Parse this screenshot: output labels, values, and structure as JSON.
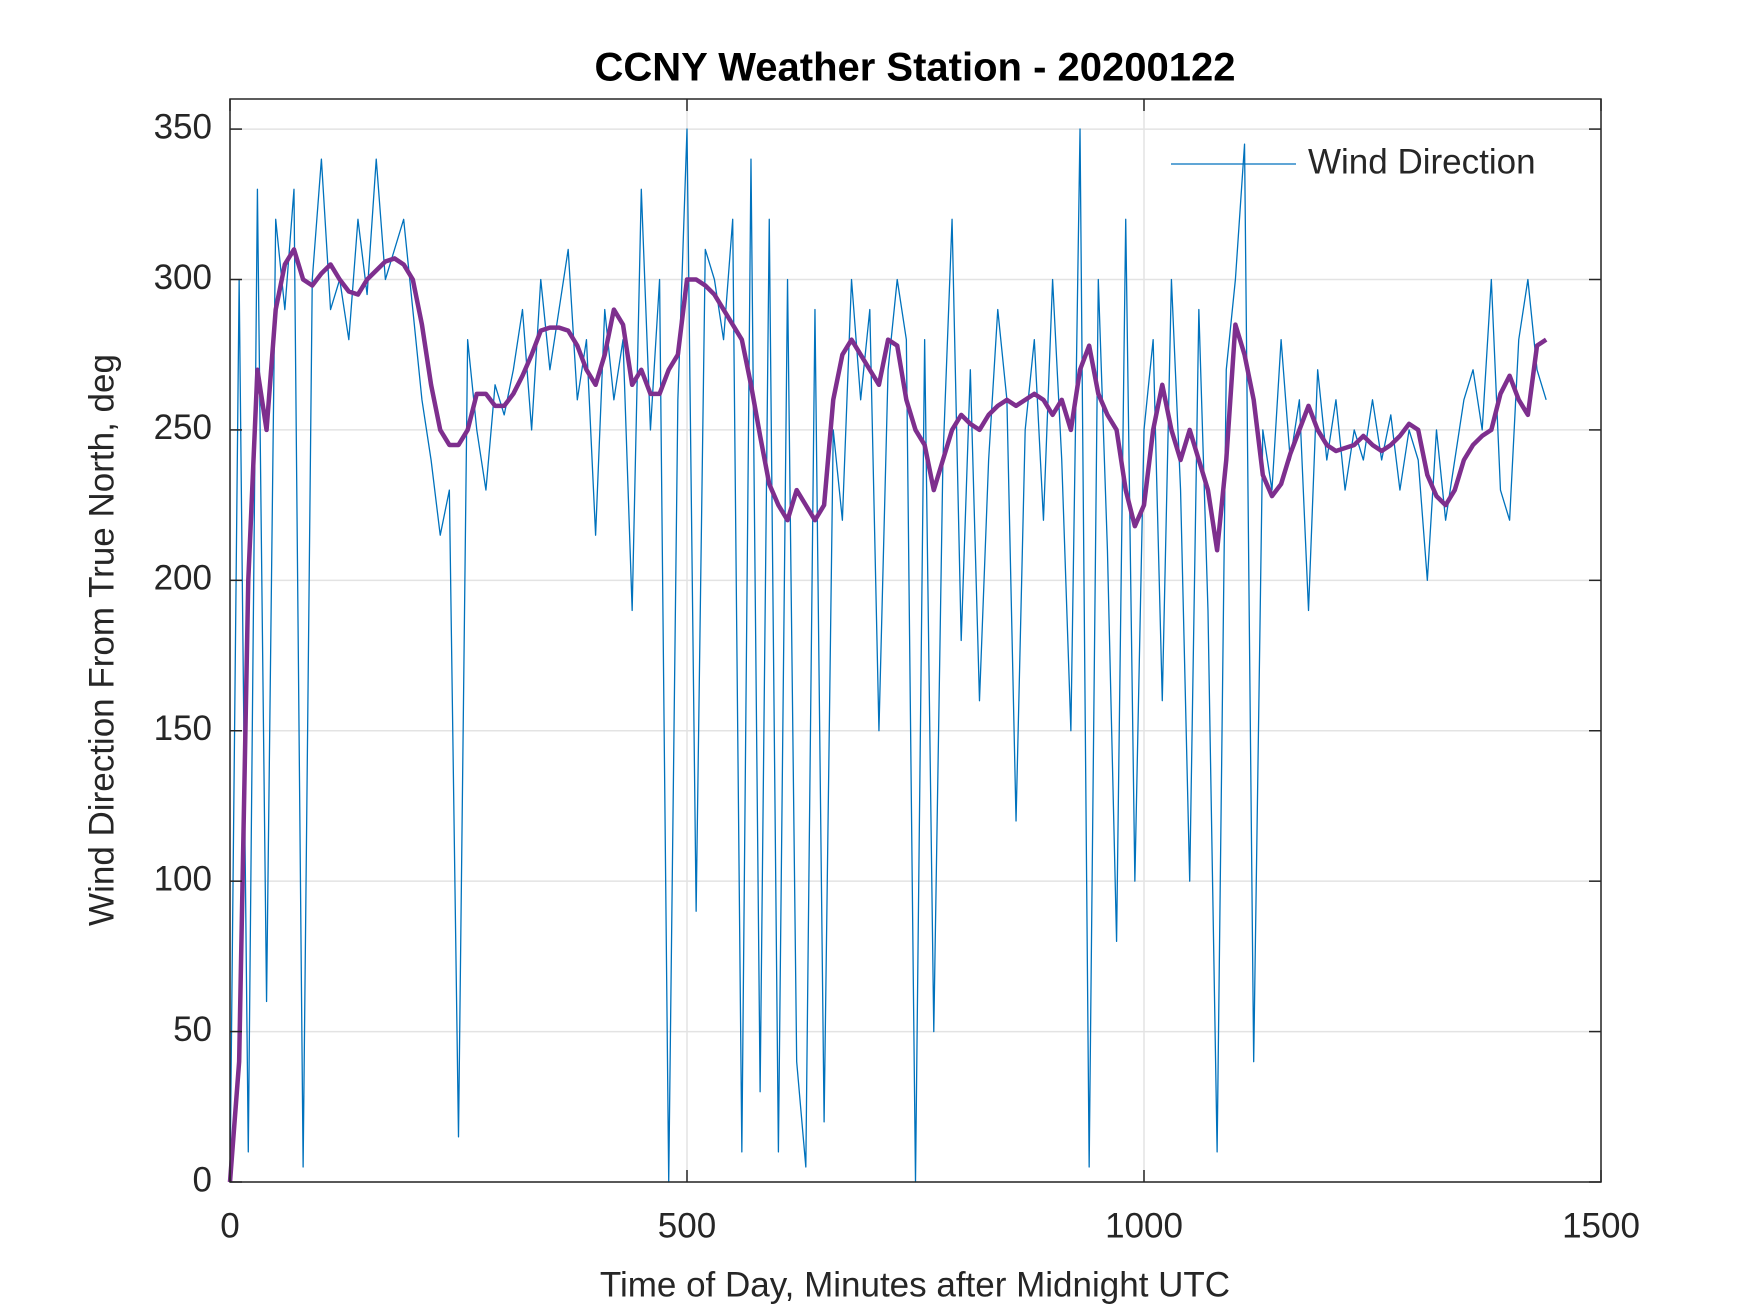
{
  "chart_data": {
    "type": "line",
    "title": "CCNY Weather Station - 20200122",
    "xlabel": "Time of Day, Minutes after Midnight UTC",
    "ylabel": "Wind Direction From True North, deg",
    "x": [
      0,
      10,
      20,
      30,
      40,
      50,
      60,
      70,
      80,
      90,
      100,
      110,
      120,
      130,
      140,
      150,
      160,
      170,
      180,
      190,
      200,
      210,
      220,
      230,
      240,
      250,
      260,
      270,
      280,
      290,
      300,
      310,
      320,
      330,
      340,
      350,
      360,
      370,
      380,
      390,
      400,
      410,
      420,
      430,
      440,
      450,
      460,
      470,
      480,
      490,
      500,
      510,
      520,
      530,
      540,
      550,
      560,
      570,
      580,
      590,
      600,
      610,
      620,
      630,
      640,
      650,
      660,
      670,
      680,
      690,
      700,
      710,
      720,
      730,
      740,
      750,
      760,
      770,
      780,
      790,
      800,
      810,
      820,
      830,
      840,
      850,
      860,
      870,
      880,
      890,
      900,
      910,
      920,
      930,
      940,
      950,
      960,
      970,
      980,
      990,
      1000,
      1010,
      1020,
      1030,
      1040,
      1050,
      1060,
      1070,
      1080,
      1090,
      1100,
      1110,
      1120,
      1130,
      1140,
      1150,
      1160,
      1170,
      1180,
      1190,
      1200,
      1210,
      1220,
      1230,
      1240,
      1250,
      1260,
      1270,
      1280,
      1290,
      1300,
      1310,
      1320,
      1330,
      1340,
      1350,
      1360,
      1370,
      1380,
      1390,
      1400,
      1410,
      1420,
      1430,
      1440
    ],
    "series": [
      {
        "name": "Wind Direction",
        "color": "#0072bd",
        "width": 1.3,
        "values": [
          0,
          300,
          10,
          330,
          60,
          320,
          290,
          330,
          5,
          300,
          340,
          290,
          300,
          280,
          320,
          295,
          340,
          300,
          310,
          320,
          290,
          260,
          240,
          215,
          230,
          15,
          280,
          250,
          230,
          265,
          255,
          270,
          290,
          250,
          300,
          270,
          290,
          310,
          260,
          280,
          215,
          290,
          260,
          280,
          190,
          330,
          250,
          300,
          0,
          260,
          350,
          90,
          310,
          300,
          280,
          320,
          10,
          340,
          30,
          320,
          10,
          300,
          40,
          5,
          290,
          20,
          250,
          220,
          300,
          260,
          290,
          150,
          270,
          300,
          280,
          0,
          280,
          50,
          240,
          320,
          180,
          270,
          160,
          240,
          290,
          260,
          120,
          250,
          280,
          220,
          300,
          240,
          150,
          350,
          5,
          300,
          210,
          80,
          320,
          100,
          250,
          280,
          160,
          300,
          230,
          100,
          290,
          190,
          10,
          270,
          300,
          345,
          40,
          250,
          230,
          280,
          240,
          260,
          190,
          270,
          240,
          260,
          230,
          250,
          240,
          260,
          240,
          255,
          230,
          250,
          240,
          200,
          250,
          220,
          240,
          260,
          270,
          250,
          300,
          230,
          220,
          280,
          300,
          270,
          260
        ]
      },
      {
        "color": "#7e2f8e",
        "width": 4.5,
        "values": [
          0,
          40,
          200,
          270,
          250,
          290,
          305,
          310,
          300,
          298,
          302,
          305,
          300,
          296,
          295,
          300,
          303,
          306,
          307,
          305,
          300,
          285,
          265,
          250,
          245,
          245,
          250,
          262,
          262,
          258,
          258,
          262,
          268,
          275,
          283,
          284,
          284,
          283,
          278,
          270,
          265,
          275,
          290,
          285,
          265,
          270,
          262,
          262,
          270,
          275,
          300,
          300,
          298,
          295,
          290,
          285,
          280,
          265,
          248,
          232,
          225,
          220,
          230,
          225,
          220,
          225,
          260,
          275,
          280,
          275,
          270,
          265,
          280,
          278,
          260,
          250,
          245,
          230,
          240,
          250,
          255,
          252,
          250,
          255,
          258,
          260,
          258,
          260,
          262,
          260,
          255,
          260,
          250,
          270,
          278,
          262,
          255,
          250,
          230,
          218,
          225,
          250,
          265,
          250,
          240,
          250,
          240,
          230,
          210,
          240,
          285,
          275,
          260,
          235,
          228,
          232,
          242,
          250,
          258,
          250,
          245,
          243,
          244,
          245,
          248,
          245,
          243,
          245,
          248,
          252,
          250,
          235,
          228,
          225,
          230,
          240,
          245,
          248,
          250,
          262,
          268,
          260,
          255,
          278,
          280
        ]
      }
    ],
    "xlim": [
      0,
      1500
    ],
    "xticks": [
      0,
      500,
      1000,
      1500
    ],
    "ylim": [
      0,
      360
    ],
    "yticks": [
      0,
      50,
      100,
      150,
      200,
      250,
      300,
      350
    ],
    "grid": true,
    "legend": "northeast"
  }
}
